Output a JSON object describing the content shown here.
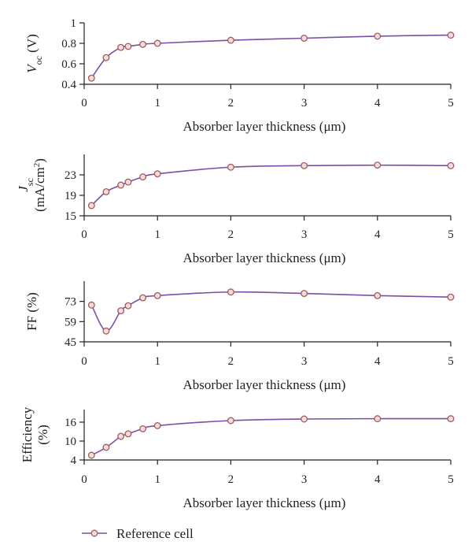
{
  "colors": {
    "line": "#7b4fa6",
    "marker_edge": "#a45a5a",
    "marker_fill": "#f3dcdc",
    "axis": "#222222"
  },
  "legend": {
    "label": "Reference cell",
    "placement": "bottom-left"
  },
  "chart_data": [
    {
      "type": "line",
      "xlabel": "Absorber layer thickness (μm)",
      "ylabel": "Voc (V)",
      "xlim": [
        0,
        5
      ],
      "ylim": [
        0.4,
        1.0
      ],
      "xticks": [
        "0",
        "1",
        "2",
        "3",
        "4",
        "5"
      ],
      "yticks": [
        "0.4",
        "0.6",
        "0.8",
        "1"
      ],
      "series": [
        {
          "name": "Reference cell",
          "x": [
            0.1,
            0.3,
            0.5,
            0.6,
            0.8,
            1.0,
            2.0,
            3.0,
            4.0,
            5.0
          ],
          "y": [
            0.46,
            0.66,
            0.76,
            0.77,
            0.79,
            0.8,
            0.83,
            0.85,
            0.87,
            0.88
          ]
        }
      ]
    },
    {
      "type": "line",
      "xlabel": "Absorber layer thickness (μm)",
      "ylabel": "Jsc (mA/cm2)",
      "xlim": [
        0,
        5
      ],
      "ylim": [
        15,
        27
      ],
      "xticks": [
        "0",
        "1",
        "2",
        "3",
        "4",
        "5"
      ],
      "yticks": [
        "15",
        "19",
        "23"
      ],
      "series": [
        {
          "name": "Reference cell",
          "x": [
            0.1,
            0.3,
            0.5,
            0.6,
            0.8,
            1.0,
            2.0,
            3.0,
            4.0,
            5.0
          ],
          "y": [
            17.0,
            19.7,
            21.0,
            21.6,
            22.6,
            23.2,
            24.5,
            24.8,
            24.9,
            24.8
          ]
        }
      ]
    },
    {
      "type": "line",
      "xlabel": "Absorber layer thickness (μm)",
      "ylabel": "FF (%)",
      "xlim": [
        0,
        5
      ],
      "ylim": [
        45,
        87
      ],
      "xticks": [
        "0",
        "1",
        "2",
        "3",
        "4",
        "5"
      ],
      "yticks": [
        "45",
        "59",
        "73"
      ],
      "series": [
        {
          "name": "Reference cell",
          "x": [
            0.1,
            0.3,
            0.5,
            0.6,
            0.8,
            1.0,
            2.0,
            3.0,
            4.0,
            5.0
          ],
          "y": [
            70.5,
            52.5,
            66.5,
            70.0,
            75.5,
            77.0,
            79.5,
            78.5,
            77.0,
            76.0
          ]
        }
      ]
    },
    {
      "type": "line",
      "xlabel": "Absorber layer thickness (μm)",
      "ylabel": "Efficiency (%)",
      "xlim": [
        0,
        5
      ],
      "ylim": [
        4,
        20
      ],
      "xticks": [
        "0",
        "1",
        "2",
        "3",
        "4",
        "5"
      ],
      "yticks": [
        "4",
        "10",
        "16"
      ],
      "series": [
        {
          "name": "Reference cell",
          "x": [
            0.1,
            0.3,
            0.5,
            0.6,
            0.8,
            1.0,
            2.0,
            3.0,
            4.0,
            5.0
          ],
          "y": [
            5.5,
            8.0,
            11.5,
            12.3,
            13.9,
            14.9,
            16.5,
            17.0,
            17.1,
            17.1
          ]
        }
      ]
    }
  ]
}
